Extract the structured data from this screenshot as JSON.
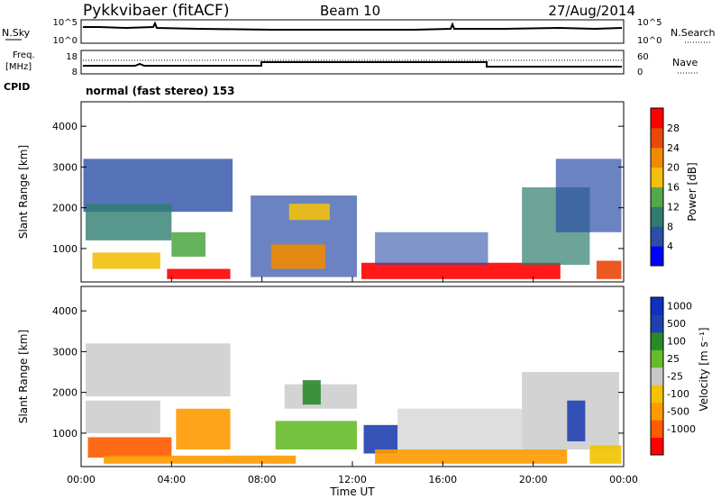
{
  "header": {
    "station": "Pykkvibaer (fitACF)",
    "beam": "Beam 10",
    "date": "27/Aug/2014"
  },
  "strip_panels": {
    "nsky_label": "N.Sky",
    "nsearch_label": "N.Search",
    "freq_label_line1": "Freq.",
    "freq_label_line2": "[MHz]",
    "nave_label": "Nave",
    "cpid_label": "CPID",
    "cpid_text": "normal (fast stereo) 153",
    "nsky_ticks": [
      "10^5",
      "10^0"
    ],
    "nsearch_ticks": [
      "10^5",
      "10^0"
    ],
    "freq_ticks": [
      "18",
      "8"
    ],
    "nave_ticks": [
      "60",
      "0"
    ]
  },
  "colors": {
    "power_scale": [
      "#0000ff",
      "#2c4fa6",
      "#2e7d6f",
      "#55a84a",
      "#f2c00d",
      "#f08a00",
      "#e8480a",
      "#ff0000"
    ],
    "velocity_scale": [
      "#ff0000",
      "#ff5a00",
      "#ff9a00",
      "#f2c300",
      "#c8c8c8",
      "#66bb2a",
      "#2a8a2a",
      "#2040b0",
      "#1030c0"
    ]
  },
  "chart_data": [
    {
      "type": "heatmap",
      "title": "Power",
      "xlabel": "",
      "ylabel": "Slant Range [km]",
      "x_ticks": [
        "00:00",
        "04:00",
        "08:00",
        "12:00",
        "16:00",
        "20:00",
        "00:00"
      ],
      "xlim": [
        0,
        24
      ],
      "y_ticks": [
        "1000",
        "2000",
        "3000",
        "4000"
      ],
      "ylim": [
        180,
        4600
      ],
      "colorbar_label": "Power [dB]",
      "colorbar_ticks": [
        "4",
        "8",
        "12",
        "16",
        "20",
        "24",
        "28"
      ],
      "colorbar_range": [
        0,
        30
      ]
    },
    {
      "type": "heatmap",
      "title": "Velocity",
      "xlabel": "Time UT",
      "ylabel": "Slant Range [km]",
      "x_ticks": [
        "00:00",
        "04:00",
        "08:00",
        "12:00",
        "16:00",
        "20:00",
        "00:00"
      ],
      "xlim": [
        0,
        24
      ],
      "y_ticks": [
        "1000",
        "2000",
        "3000",
        "4000"
      ],
      "ylim": [
        180,
        4600
      ],
      "colorbar_label": "Velocity [m s⁻¹]",
      "colorbar_ticks": [
        "1000",
        "500",
        "100",
        "25",
        "-25",
        "-100",
        "-500",
        "-1000"
      ]
    }
  ]
}
